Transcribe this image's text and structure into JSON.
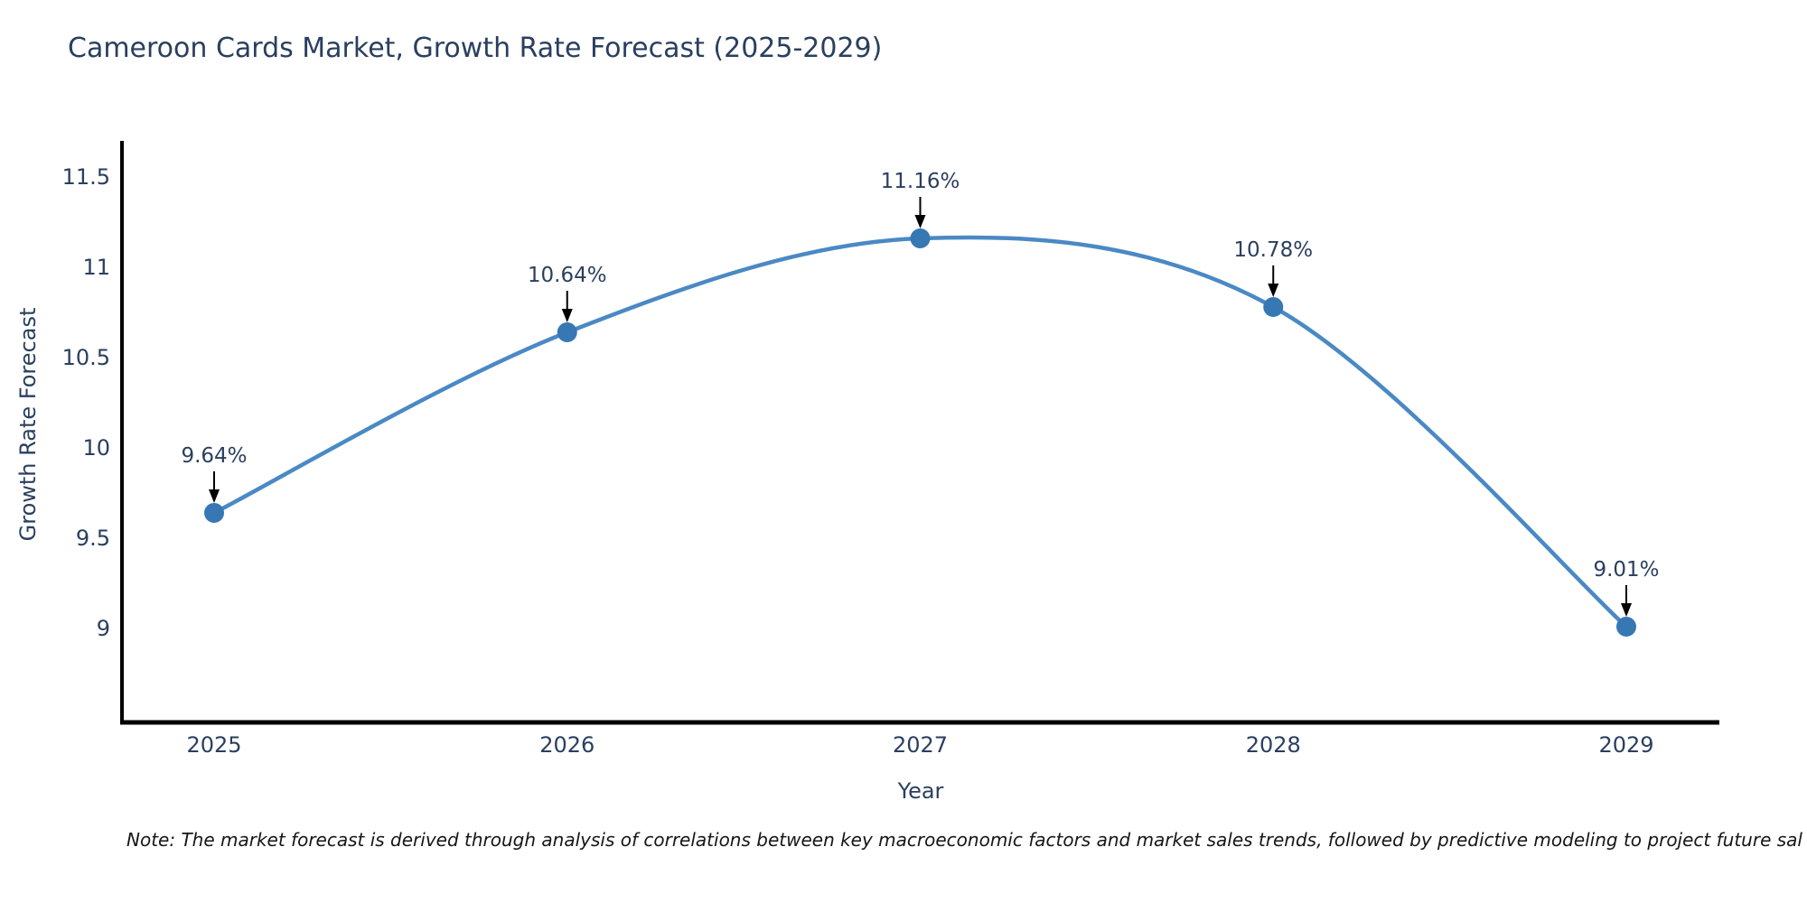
{
  "chart_data": {
    "type": "line",
    "title": "Cameroon Cards Market, Growth Rate Forecast (2025-2029)",
    "xlabel": "Year",
    "ylabel": "Growth Rate Forecast",
    "x": [
      2025,
      2026,
      2027,
      2028,
      2029
    ],
    "values": [
      9.64,
      10.64,
      11.16,
      10.78,
      9.01
    ],
    "point_labels": [
      "9.64%",
      "10.64%",
      "11.16%",
      "10.78%",
      "9.01%"
    ],
    "y_ticks": [
      9,
      9.5,
      10,
      10.5,
      11,
      11.5
    ],
    "ylim": [
      8.48,
      11.7
    ],
    "grid": false,
    "legend_position": "none",
    "curve": "spline",
    "line_color": "#4a89c4",
    "marker_color": "#3778b4",
    "axis_color": "#000000",
    "text_color": "#2a3f5f",
    "arrow_color": "#000000"
  },
  "note": "Note: The market forecast is derived through analysis of correlations between key macroeconomic factors and market sales trends, followed by predictive modeling to project future sal"
}
